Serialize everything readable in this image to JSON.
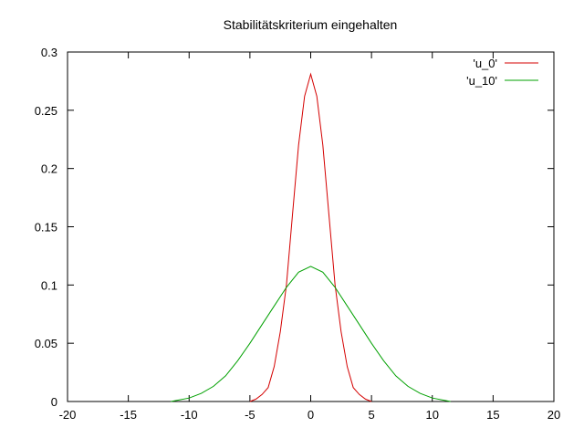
{
  "chart_data": {
    "type": "line",
    "title": "Stabilitätskriterium eingehalten",
    "xlabel": "",
    "ylabel": "",
    "xlim": [
      -20,
      20
    ],
    "ylim": [
      0,
      0.3
    ],
    "xticks": [
      -20,
      -15,
      -10,
      -5,
      0,
      5,
      10,
      15,
      20
    ],
    "yticks": [
      0,
      0.05,
      0.1,
      0.15,
      0.2,
      0.25,
      0.3
    ],
    "xtick_labels": [
      "-20",
      "-15",
      "-10",
      "-5",
      "0",
      "5",
      "10",
      "15",
      "20"
    ],
    "ytick_labels": [
      "0",
      "0.05",
      "0.1",
      "0.15",
      "0.2",
      "0.25",
      "0.3"
    ],
    "grid": false,
    "legend_position": "top-right",
    "series": [
      {
        "name": "'u_0'",
        "color": "#d40000",
        "x": [
          -5,
          -4.5,
          -4,
          -3.5,
          -3,
          -2.5,
          -2,
          -1.5,
          -1,
          -0.5,
          0,
          0.5,
          1,
          1.5,
          2,
          2.5,
          3,
          3.5,
          4,
          4.5,
          5
        ],
        "y": [
          0.0,
          0.002,
          0.006,
          0.012,
          0.03,
          0.06,
          0.1,
          0.16,
          0.22,
          0.262,
          0.281,
          0.262,
          0.22,
          0.16,
          0.1,
          0.06,
          0.03,
          0.012,
          0.006,
          0.002,
          0.0
        ]
      },
      {
        "name": "'u_10'",
        "color": "#00a000",
        "x": [
          -11.5,
          -11,
          -10,
          -9,
          -8,
          -7,
          -6,
          -5,
          -4,
          -3,
          -2,
          -1,
          0,
          1,
          2,
          3,
          4,
          5,
          6,
          7,
          8,
          9,
          10,
          11,
          11.5
        ],
        "y": [
          0.0,
          0.001,
          0.003,
          0.007,
          0.013,
          0.022,
          0.035,
          0.05,
          0.066,
          0.082,
          0.098,
          0.111,
          0.116,
          0.111,
          0.098,
          0.082,
          0.066,
          0.05,
          0.035,
          0.022,
          0.013,
          0.007,
          0.003,
          0.001,
          0.0
        ]
      }
    ]
  }
}
